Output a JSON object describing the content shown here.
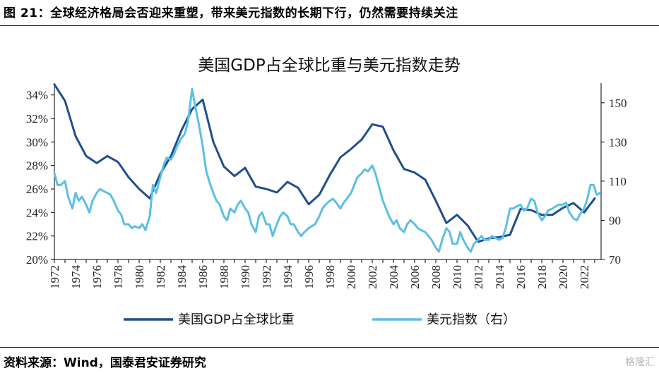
{
  "header": {
    "title": "图 21：全球经济格局会否迎来重塑，带来美元指数的长期下行，仍然需要持续关注"
  },
  "footer": {
    "source": "资料来源：Wind，国泰君安证券研究"
  },
  "watermark": {
    "text": "格隆汇"
  },
  "chart_data": {
    "type": "line",
    "title": "美国GDP占全球比重与美元指数走势",
    "grid": false,
    "legend_position": "bottom",
    "x_ticks": [
      "1972",
      "1974",
      "1976",
      "1978",
      "1980",
      "1982",
      "1984",
      "1986",
      "1988",
      "1990",
      "1992",
      "1994",
      "1996",
      "1998",
      "2000",
      "2002",
      "2004",
      "2006",
      "2008",
      "2010",
      "2012",
      "2014",
      "2016",
      "2018",
      "2020",
      "2022"
    ],
    "xlim": [
      1972,
      2023.6
    ],
    "y_left": {
      "min": 20,
      "max": 35,
      "ticks": [
        "20%",
        "22%",
        "24%",
        "26%",
        "28%",
        "30%",
        "32%",
        "34%"
      ],
      "tick_values": [
        20,
        22,
        24,
        26,
        28,
        30,
        32,
        34
      ]
    },
    "y_right": {
      "min": 70,
      "max": 160,
      "ticks": [
        "70",
        "90",
        "110",
        "130",
        "150"
      ],
      "tick_values": [
        70,
        90,
        110,
        130,
        150
      ]
    },
    "series": [
      {
        "name": "美国GDP占全球比重",
        "axis": "left",
        "color": "#1f4e8c",
        "points": [
          [
            1972,
            34.9
          ],
          [
            1973,
            33.5
          ],
          [
            1974,
            30.5
          ],
          [
            1975,
            28.8
          ],
          [
            1976,
            28.2
          ],
          [
            1977,
            28.8
          ],
          [
            1978,
            28.3
          ],
          [
            1979,
            27.0
          ],
          [
            1980,
            26.0
          ],
          [
            1981,
            25.2
          ],
          [
            1982,
            27.3
          ],
          [
            1983,
            28.8
          ],
          [
            1984,
            31.0
          ],
          [
            1985,
            32.8
          ],
          [
            1986,
            33.6
          ],
          [
            1987,
            30.0
          ],
          [
            1988,
            27.9
          ],
          [
            1989,
            27.1
          ],
          [
            1990,
            27.8
          ],
          [
            1991,
            26.2
          ],
          [
            1992,
            26.0
          ],
          [
            1993,
            25.7
          ],
          [
            1994,
            26.6
          ],
          [
            1995,
            26.1
          ],
          [
            1996,
            24.7
          ],
          [
            1997,
            25.5
          ],
          [
            1998,
            27.2
          ],
          [
            1999,
            28.7
          ],
          [
            2000,
            29.4
          ],
          [
            2001,
            30.2
          ],
          [
            2002,
            31.5
          ],
          [
            2003,
            31.3
          ],
          [
            2004,
            29.3
          ],
          [
            2005,
            27.7
          ],
          [
            2006,
            27.4
          ],
          [
            2007,
            26.8
          ],
          [
            2008,
            25.0
          ],
          [
            2009,
            23.1
          ],
          [
            2010,
            23.8
          ],
          [
            2011,
            22.9
          ],
          [
            2012,
            21.5
          ],
          [
            2013,
            21.8
          ],
          [
            2014,
            21.9
          ],
          [
            2015,
            22.1
          ],
          [
            2016,
            24.3
          ],
          [
            2017,
            24.2
          ],
          [
            2018,
            23.8
          ],
          [
            2019,
            23.8
          ],
          [
            2020,
            24.4
          ],
          [
            2021,
            24.8
          ],
          [
            2022,
            24.0
          ],
          [
            2023,
            25.2
          ]
        ]
      },
      {
        "name": "美元指数（右）",
        "axis": "right",
        "color": "#5bbfe6",
        "points": [
          [
            1972.0,
            114
          ],
          [
            1972.3,
            108
          ],
          [
            1972.6,
            108
          ],
          [
            1973.0,
            110
          ],
          [
            1973.3,
            102
          ],
          [
            1973.7,
            96
          ],
          [
            1974.0,
            104
          ],
          [
            1974.3,
            100
          ],
          [
            1974.6,
            102
          ],
          [
            1975.0,
            98
          ],
          [
            1975.3,
            94
          ],
          [
            1975.6,
            100
          ],
          [
            1976.0,
            104
          ],
          [
            1976.3,
            106
          ],
          [
            1976.6,
            105
          ],
          [
            1977.0,
            104
          ],
          [
            1977.3,
            103
          ],
          [
            1977.6,
            100
          ],
          [
            1978.0,
            95
          ],
          [
            1978.3,
            93
          ],
          [
            1978.6,
            88
          ],
          [
            1979.0,
            88
          ],
          [
            1979.3,
            86
          ],
          [
            1979.6,
            87
          ],
          [
            1980.0,
            86
          ],
          [
            1980.3,
            88
          ],
          [
            1980.6,
            85
          ],
          [
            1981.0,
            92
          ],
          [
            1981.3,
            108
          ],
          [
            1981.6,
            104
          ],
          [
            1982.0,
            112
          ],
          [
            1982.3,
            118
          ],
          [
            1982.6,
            122
          ],
          [
            1983.0,
            121
          ],
          [
            1983.3,
            124
          ],
          [
            1983.6,
            128
          ],
          [
            1984.0,
            132
          ],
          [
            1984.3,
            134
          ],
          [
            1984.6,
            140
          ],
          [
            1985.0,
            157
          ],
          [
            1985.3,
            148
          ],
          [
            1985.6,
            140
          ],
          [
            1986.0,
            128
          ],
          [
            1986.3,
            116
          ],
          [
            1986.6,
            110
          ],
          [
            1987.0,
            104
          ],
          [
            1987.3,
            100
          ],
          [
            1987.6,
            98
          ],
          [
            1988.0,
            92
          ],
          [
            1988.3,
            90
          ],
          [
            1988.6,
            96
          ],
          [
            1989.0,
            94
          ],
          [
            1989.3,
            98
          ],
          [
            1989.6,
            100
          ],
          [
            1990.0,
            96
          ],
          [
            1990.3,
            94
          ],
          [
            1990.6,
            88
          ],
          [
            1991.0,
            84
          ],
          [
            1991.3,
            92
          ],
          [
            1991.6,
            94
          ],
          [
            1992.0,
            88
          ],
          [
            1992.3,
            88
          ],
          [
            1992.6,
            82
          ],
          [
            1993.0,
            88
          ],
          [
            1993.3,
            92
          ],
          [
            1993.6,
            94
          ],
          [
            1994.0,
            92
          ],
          [
            1994.3,
            88
          ],
          [
            1994.6,
            88
          ],
          [
            1995.0,
            84
          ],
          [
            1995.3,
            82
          ],
          [
            1995.6,
            84
          ],
          [
            1996.0,
            86
          ],
          [
            1996.3,
            87
          ],
          [
            1996.6,
            88
          ],
          [
            1997.0,
            92
          ],
          [
            1997.3,
            96
          ],
          [
            1997.6,
            98
          ],
          [
            1998.0,
            100
          ],
          [
            1998.3,
            101
          ],
          [
            1998.6,
            99
          ],
          [
            1999.0,
            96
          ],
          [
            1999.3,
            99
          ],
          [
            1999.6,
            101
          ],
          [
            2000.0,
            104
          ],
          [
            2000.3,
            108
          ],
          [
            2000.6,
            112
          ],
          [
            2001.0,
            114
          ],
          [
            2001.3,
            116
          ],
          [
            2001.6,
            115
          ],
          [
            2002.0,
            118
          ],
          [
            2002.3,
            114
          ],
          [
            2002.6,
            108
          ],
          [
            2003.0,
            100
          ],
          [
            2003.3,
            96
          ],
          [
            2003.6,
            92
          ],
          [
            2004.0,
            88
          ],
          [
            2004.3,
            90
          ],
          [
            2004.6,
            86
          ],
          [
            2005.0,
            84
          ],
          [
            2005.3,
            88
          ],
          [
            2005.6,
            90
          ],
          [
            2006.0,
            88
          ],
          [
            2006.3,
            86
          ],
          [
            2006.6,
            85
          ],
          [
            2007.0,
            84
          ],
          [
            2007.3,
            82
          ],
          [
            2007.6,
            80
          ],
          [
            2008.0,
            76
          ],
          [
            2008.3,
            74
          ],
          [
            2008.6,
            80
          ],
          [
            2009.0,
            86
          ],
          [
            2009.3,
            84
          ],
          [
            2009.6,
            78
          ],
          [
            2010.0,
            78
          ],
          [
            2010.3,
            84
          ],
          [
            2010.6,
            80
          ],
          [
            2011.0,
            76
          ],
          [
            2011.3,
            74
          ],
          [
            2011.6,
            78
          ],
          [
            2012.0,
            80
          ],
          [
            2012.3,
            82
          ],
          [
            2012.6,
            80
          ],
          [
            2013.0,
            80
          ],
          [
            2013.3,
            82
          ],
          [
            2013.6,
            81
          ],
          [
            2014.0,
            80
          ],
          [
            2014.3,
            81
          ],
          [
            2014.6,
            86
          ],
          [
            2015.0,
            96
          ],
          [
            2015.3,
            96
          ],
          [
            2015.6,
            97
          ],
          [
            2016.0,
            98
          ],
          [
            2016.3,
            95
          ],
          [
            2016.6,
            96
          ],
          [
            2017.0,
            101
          ],
          [
            2017.3,
            100
          ],
          [
            2017.6,
            94
          ],
          [
            2018.0,
            90
          ],
          [
            2018.3,
            92
          ],
          [
            2018.6,
            95
          ],
          [
            2019.0,
            96
          ],
          [
            2019.3,
            97
          ],
          [
            2019.6,
            98
          ],
          [
            2020.0,
            98
          ],
          [
            2020.3,
            99
          ],
          [
            2020.6,
            94
          ],
          [
            2021.0,
            91
          ],
          [
            2021.3,
            90
          ],
          [
            2021.6,
            93
          ],
          [
            2022.0,
            96
          ],
          [
            2022.3,
            101
          ],
          [
            2022.6,
            108
          ],
          [
            2022.9,
            108
          ],
          [
            2023.2,
            103
          ],
          [
            2023.5,
            104
          ]
        ]
      }
    ]
  }
}
